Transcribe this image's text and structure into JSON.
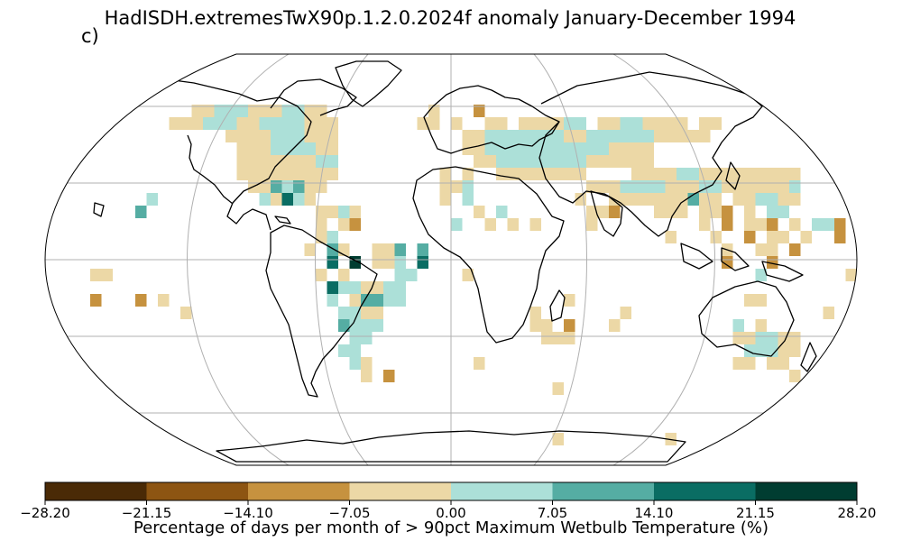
{
  "figure": {
    "title": "HadISDH.extremesTwX90p.1.2.0.2024f anomaly January-December 1994",
    "panel_label": "c)"
  },
  "colorbar": {
    "label": "Percentage of days per month of > 90pct Maximum Wetbulb Temperature (%)",
    "ticks": [
      "−28.20",
      "−21.15",
      "−14.10",
      "−7.05",
      "0.00",
      "7.05",
      "14.10",
      "21.15",
      "28.20"
    ],
    "colors": [
      "#4a2a06",
      "#8d5512",
      "#c6923f",
      "#ecd8a6",
      "#ace0d8",
      "#55ada3",
      "#0a6d63",
      "#003d31"
    ]
  },
  "map": {
    "projection": "Robinson",
    "gridlines": true,
    "coastlines": true
  }
}
